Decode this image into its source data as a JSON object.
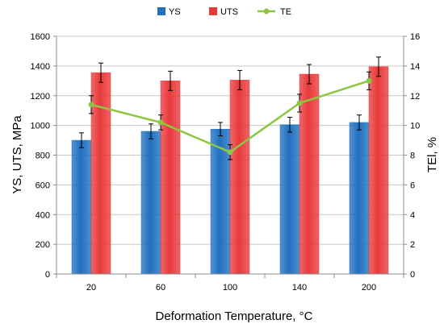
{
  "chart_data": {
    "type": "bar",
    "categories": [
      "20",
      "60",
      "100",
      "140",
      "200"
    ],
    "xlabel": "Deformation Temperature, °C",
    "ylabel": "YS, UTS, MPa",
    "y2label": "TEl, %",
    "ylim": [
      0,
      1600
    ],
    "yticks": [
      0,
      200,
      400,
      600,
      800,
      1000,
      1200,
      1400,
      1600
    ],
    "y2lim": [
      0,
      16
    ],
    "y2ticks": [
      0,
      2,
      4,
      6,
      8,
      10,
      12,
      14,
      16
    ],
    "grid": "horizontal",
    "legend_position": "top",
    "series": [
      {
        "name": "YS",
        "kind": "bar",
        "axis": "left",
        "color": "#1f6fbf",
        "values": [
          900,
          960,
          975,
          1005,
          1020
        ],
        "errors": [
          50,
          50,
          45,
          50,
          50
        ]
      },
      {
        "name": "UTS",
        "kind": "bar",
        "axis": "left",
        "color": "#e8393a",
        "values": [
          1355,
          1300,
          1305,
          1345,
          1395
        ],
        "errors": [
          65,
          65,
          65,
          65,
          65
        ]
      },
      {
        "name": "TE",
        "kind": "line",
        "axis": "right",
        "color": "#8dc641",
        "values": [
          11.4,
          10.2,
          8.2,
          11.5,
          13.0
        ],
        "errors": [
          0.6,
          0.5,
          0.5,
          0.6,
          0.6
        ]
      }
    ]
  }
}
